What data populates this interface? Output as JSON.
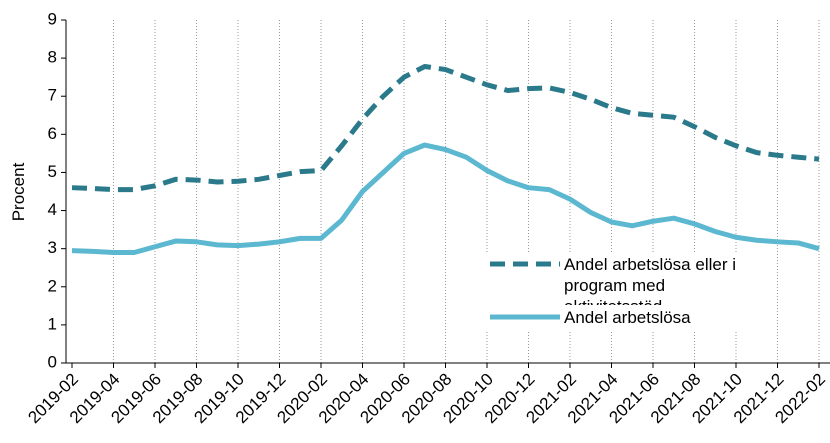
{
  "chart_data": {
    "type": "line",
    "y_label": "Procent",
    "categories": [
      "2019-02",
      null,
      "2019-04",
      null,
      "2019-06",
      null,
      "2019-08",
      null,
      "2019-10",
      null,
      "2019-12",
      null,
      "2020-02",
      null,
      "2020-04",
      null,
      "2020-06",
      null,
      "2020-08",
      null,
      "2020-10",
      null,
      "2020-12",
      null,
      "2021-02",
      null,
      "2021-04",
      null,
      "2021-06",
      null,
      "2021-08",
      null,
      "2021-10",
      null,
      "2021-12",
      null,
      "2022-02"
    ],
    "series": [
      {
        "name": "Andel arbetslösa eller i program med aktivitetsstöd",
        "color": "#2a7a8c",
        "dashed": true,
        "values": [
          4.6,
          4.58,
          4.55,
          4.55,
          4.65,
          4.82,
          4.8,
          4.75,
          4.77,
          4.82,
          4.92,
          5.02,
          5.05,
          5.7,
          6.4,
          7.0,
          7.5,
          7.78,
          7.7,
          7.5,
          7.3,
          7.15,
          7.2,
          7.22,
          7.1,
          6.92,
          6.7,
          6.55,
          6.5,
          6.45,
          6.2,
          5.92,
          5.7,
          5.52,
          5.45,
          5.4,
          5.35
        ]
      },
      {
        "name": "Andel arbetslösa",
        "color": "#5bb8d0",
        "dashed": false,
        "values": [
          2.95,
          2.93,
          2.9,
          2.9,
          3.05,
          3.2,
          3.18,
          3.1,
          3.08,
          3.12,
          3.18,
          3.27,
          3.27,
          3.75,
          4.5,
          5.0,
          5.5,
          5.72,
          5.6,
          5.4,
          5.05,
          4.78,
          4.6,
          4.55,
          4.3,
          3.95,
          3.7,
          3.6,
          3.72,
          3.8,
          3.65,
          3.45,
          3.3,
          3.22,
          3.18,
          3.15,
          3.0
        ]
      }
    ],
    "ylim": [
      0,
      9
    ],
    "yticks": [
      0,
      1,
      2,
      3,
      4,
      5,
      6,
      7,
      8,
      9
    ],
    "vertical_grid": true
  }
}
